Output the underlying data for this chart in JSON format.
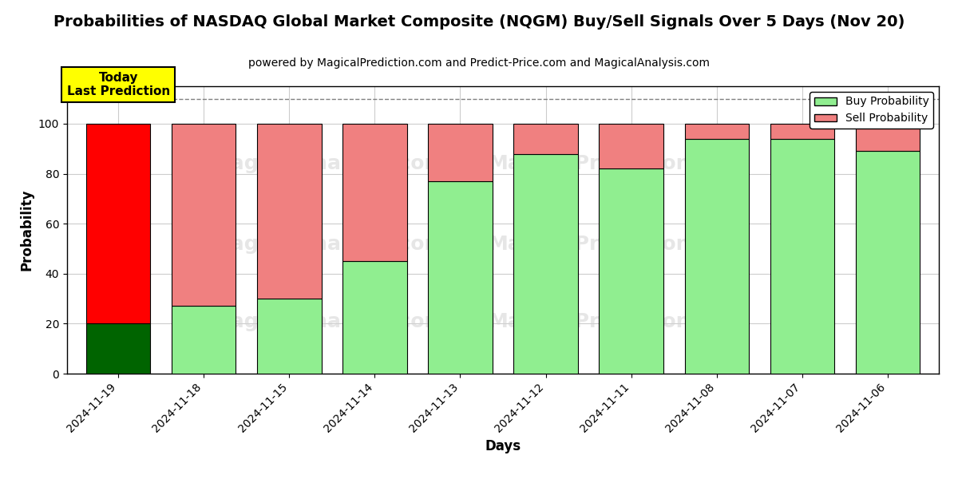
{
  "title": "Probabilities of NASDAQ Global Market Composite (NQGM) Buy/Sell Signals Over 5 Days (Nov 20)",
  "subtitle": "powered by MagicalPrediction.com and Predict-Price.com and MagicalAnalysis.com",
  "xlabel": "Days",
  "ylabel": "Probability",
  "categories": [
    "2024-11-19",
    "2024-11-18",
    "2024-11-15",
    "2024-11-14",
    "2024-11-13",
    "2024-11-12",
    "2024-11-11",
    "2024-11-08",
    "2024-11-07",
    "2024-11-06"
  ],
  "buy_values": [
    20,
    27,
    30,
    45,
    77,
    88,
    82,
    94,
    94,
    89
  ],
  "sell_values": [
    80,
    73,
    70,
    55,
    23,
    12,
    18,
    6,
    6,
    11
  ],
  "buy_colors": [
    "#006400",
    "#90EE90",
    "#90EE90",
    "#90EE90",
    "#90EE90",
    "#90EE90",
    "#90EE90",
    "#90EE90",
    "#90EE90",
    "#90EE90"
  ],
  "sell_colors": [
    "#FF0000",
    "#F08080",
    "#F08080",
    "#F08080",
    "#F08080",
    "#F08080",
    "#F08080",
    "#F08080",
    "#F08080",
    "#F08080"
  ],
  "legend_buy_color": "#90EE90",
  "legend_sell_color": "#F08080",
  "annotation_text": "Today\nLast Prediction",
  "annotation_bg": "#FFFF00",
  "dashed_line_y": 110,
  "ylim": [
    0,
    115
  ],
  "yticks": [
    0,
    20,
    40,
    60,
    80,
    100
  ],
  "watermark1": "MagicalAnalysis.com",
  "watermark2": "MagicalPrediction.com",
  "bar_width": 0.75,
  "edgecolor": "black",
  "edgelinewidth": 0.8,
  "background_color": "#ffffff",
  "grid_color": "#cccccc",
  "title_fontsize": 14,
  "subtitle_fontsize": 10,
  "label_fontsize": 12,
  "tick_fontsize": 10
}
